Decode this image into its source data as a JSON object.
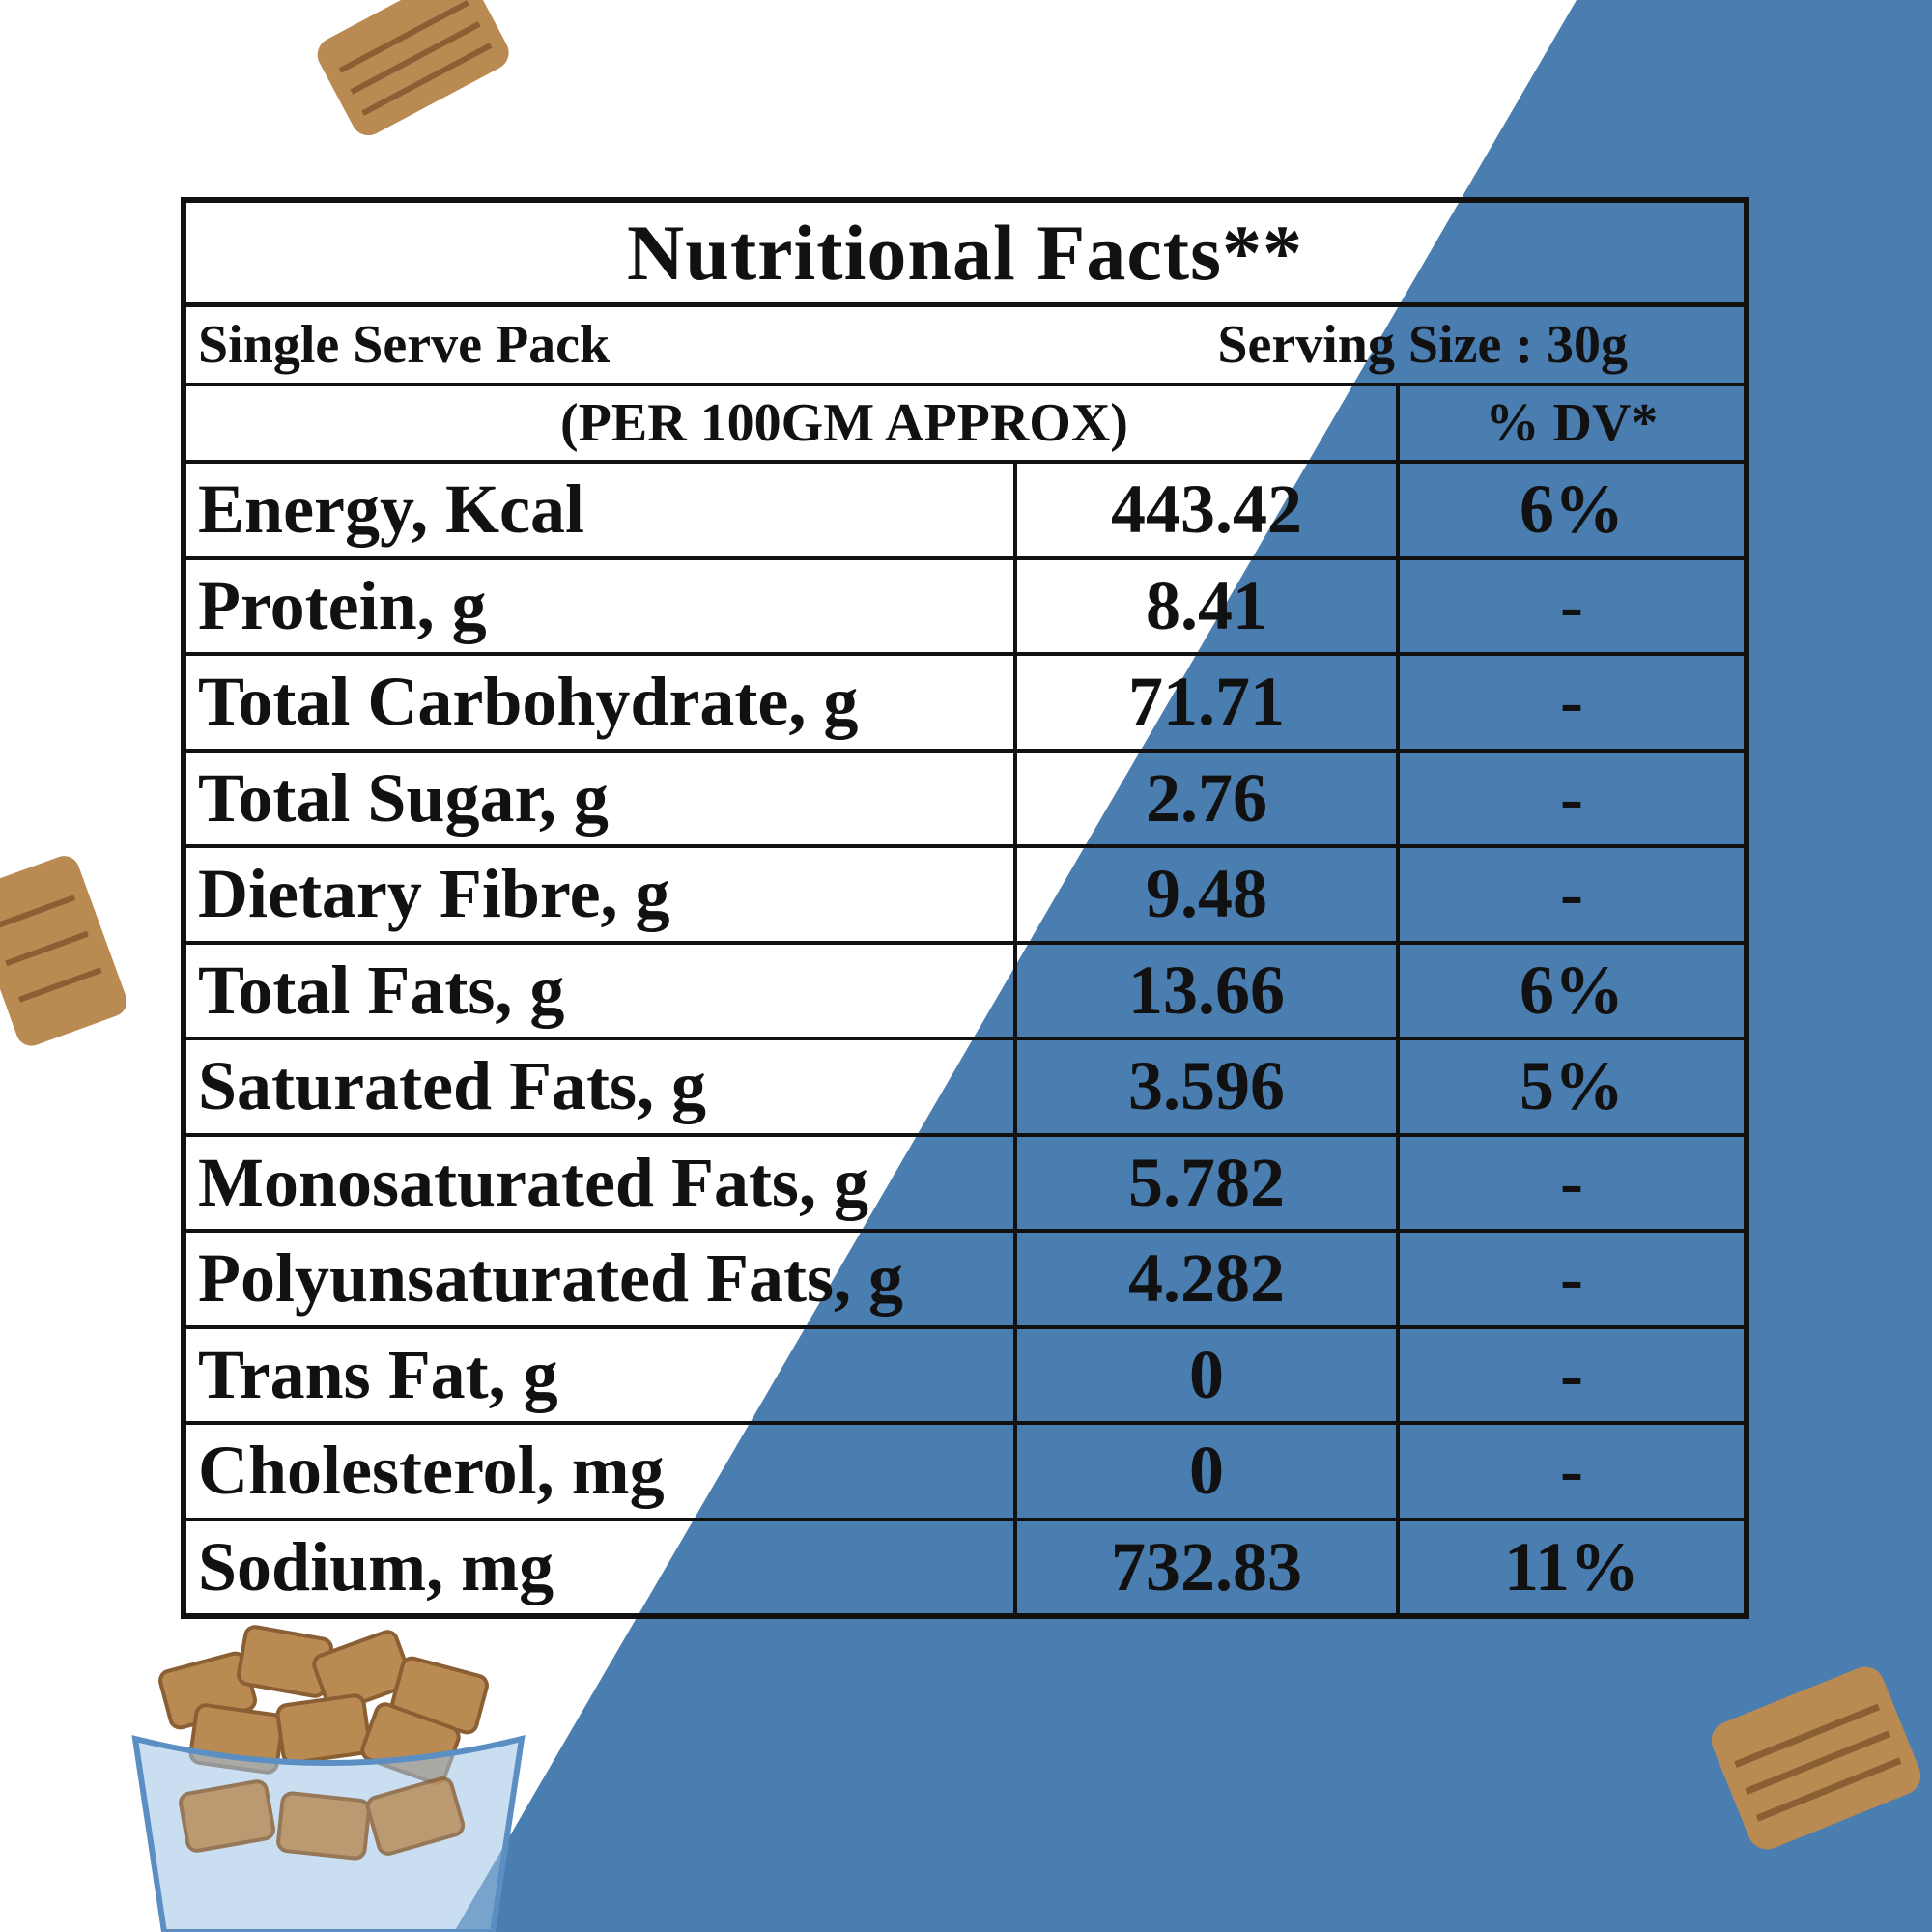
{
  "colors": {
    "background": "#ffffff",
    "accent_blue": "#4a7db0",
    "border": "#111111",
    "snack": "#b98a52"
  },
  "icons": [
    "snack-piece-icon",
    "bowl-of-snacks-icon"
  ],
  "table": {
    "title": "Nutritional Facts**",
    "pack_label": "Single Serve Pack",
    "serving_size": "Serving Size : 30g",
    "per_label": "(PER 100GM APPROX)",
    "dv_label": "% DV*",
    "rows": [
      {
        "name": "Energy, Kcal",
        "value": "443.42",
        "dv": "6%"
      },
      {
        "name": "Protein, g",
        "value": "8.41",
        "dv": "-"
      },
      {
        "name": "Total Carbohydrate, g",
        "value": "71.71",
        "dv": "-"
      },
      {
        "name": "Total Sugar, g",
        "value": "2.76",
        "dv": "-"
      },
      {
        "name": "Dietary Fibre, g",
        "value": "9.48",
        "dv": "-"
      },
      {
        "name": "Total Fats, g",
        "value": "13.66",
        "dv": "6%"
      },
      {
        "name": "Saturated Fats, g",
        "value": "3.596",
        "dv": "5%"
      },
      {
        "name": "Monosaturated Fats, g",
        "value": "5.782",
        "dv": "-"
      },
      {
        "name": "Polyunsaturated Fats, g",
        "value": "4.282",
        "dv": "-"
      },
      {
        "name": "Trans Fat, g",
        "value": "0",
        "dv": "-"
      },
      {
        "name": "Cholesterol, mg",
        "value": "0",
        "dv": "-"
      },
      {
        "name": "Sodium, mg",
        "value": "732.83",
        "dv": "11%"
      }
    ]
  }
}
